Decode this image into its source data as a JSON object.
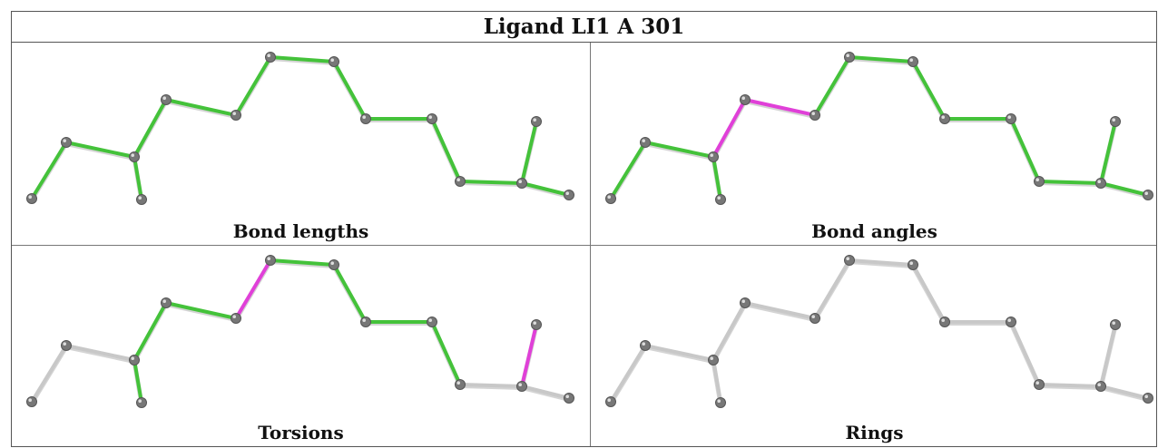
{
  "title": "Ligand LI1 A 301",
  "panels": [
    {
      "caption": "Bond lengths",
      "highlight_bonds": [],
      "grey_bonds": []
    },
    {
      "caption": "Bond angles",
      "highlight_bonds": [
        3,
        4
      ],
      "grey_bonds": []
    },
    {
      "caption": "Torsions",
      "highlight_bonds": [
        5,
        11
      ],
      "grey_bonds": [
        0,
        1,
        10,
        12,
        13
      ]
    },
    {
      "caption": "Rings",
      "highlight_bonds": [],
      "grey_bonds": "all"
    }
  ],
  "colors": {
    "ok_bond": "#44c23a",
    "outlier_bond": "#e040d8",
    "grey_bond": "#c8c8c8",
    "atom": "#777777"
  }
}
